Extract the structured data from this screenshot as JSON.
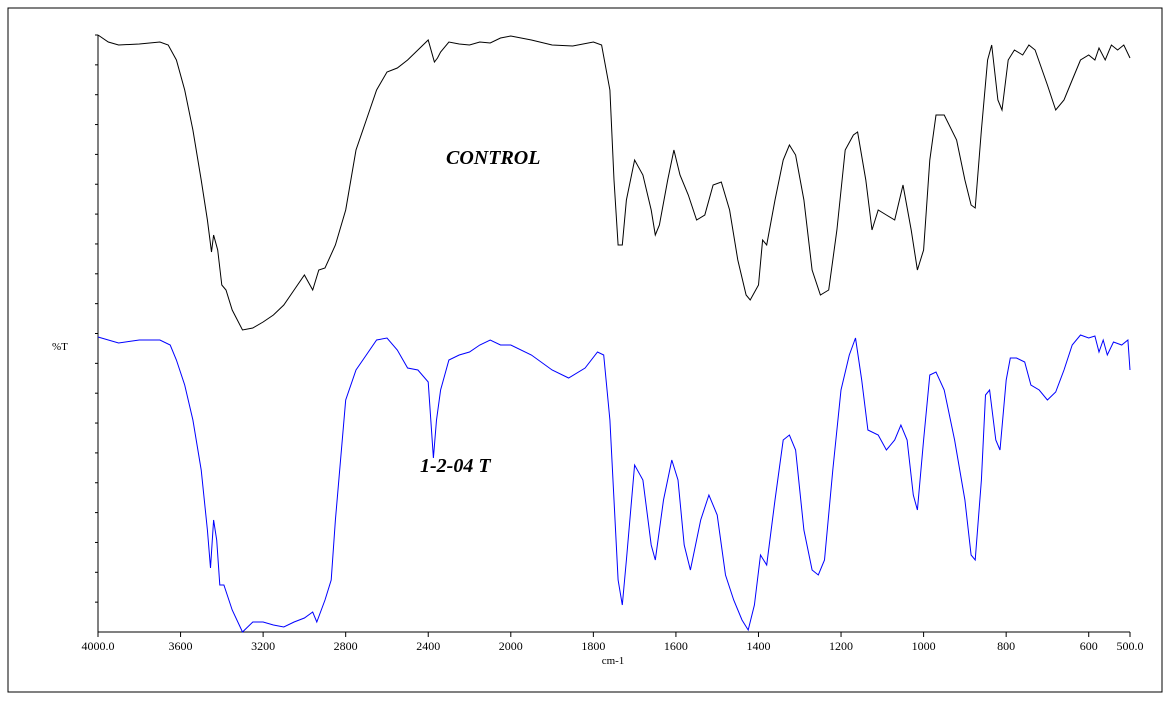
{
  "chart_data": {
    "type": "line",
    "xlabel": "cm-1",
    "ylabel": "%T",
    "annotations": [
      {
        "text": "CONTROL"
      },
      {
        "text": "1-2-04 T"
      }
    ],
    "xlim": [
      4000,
      500
    ],
    "xbreak": {
      "at": 2000,
      "ratio": 2
    },
    "xticks": [
      {
        "value": 4000,
        "label": "4000.0"
      },
      3600,
      3200,
      2800,
      2400,
      2000,
      1800,
      1600,
      1400,
      1200,
      1000,
      800,
      600,
      {
        "value": 500,
        "label": "500.0"
      }
    ],
    "ylim": [
      0,
      60
    ],
    "series": [
      {
        "color": "#000000",
        "x": [
          4000,
          3950,
          3900,
          3800,
          3700,
          3660,
          3620,
          3580,
          3540,
          3500,
          3470,
          3450,
          3440,
          3420,
          3400,
          3380,
          3350,
          3300,
          3250,
          3200,
          3150,
          3100,
          3050,
          3000,
          2960,
          2930,
          2900,
          2850,
          2800,
          2750,
          2700,
          2650,
          2600,
          2550,
          2500,
          2450,
          2400,
          2370,
          2355,
          2340,
          2300,
          2250,
          2200,
          2150,
          2100,
          2050,
          2000,
          1950,
          1900,
          1850,
          1800,
          1780,
          1760,
          1750,
          1740,
          1730,
          1720,
          1700,
          1680,
          1660,
          1650,
          1640,
          1620,
          1605,
          1590,
          1570,
          1550,
          1530,
          1510,
          1490,
          1470,
          1450,
          1430,
          1420,
          1400,
          1390,
          1380,
          1360,
          1340,
          1325,
          1310,
          1290,
          1270,
          1250,
          1230,
          1210,
          1190,
          1170,
          1160,
          1140,
          1125,
          1110,
          1090,
          1070,
          1050,
          1030,
          1015,
          1000,
          985,
          970,
          950,
          920,
          900,
          885,
          875,
          860,
          845,
          835,
          820,
          810,
          795,
          780,
          760,
          745,
          730,
          700,
          680,
          660,
          640,
          620,
          600,
          585,
          575,
          560,
          545,
          530,
          515,
          500
        ],
        "values": [
          59.7,
          59,
          58.7,
          58.8,
          59,
          58.7,
          57.2,
          54.2,
          50.2,
          45.2,
          41.2,
          38,
          39.7,
          38.2,
          34.7,
          34.2,
          32.2,
          30.2,
          30.4,
          31,
          31.7,
          32.7,
          34.2,
          35.7,
          34.2,
          36.2,
          36.4,
          38.7,
          42.2,
          48.2,
          51.2,
          54.2,
          56,
          56.4,
          57.2,
          58.2,
          59.2,
          57,
          57.4,
          58,
          59,
          58.8,
          58.7,
          59,
          58.9,
          59.4,
          59.6,
          59.2,
          58.7,
          58.6,
          59,
          58.7,
          54.2,
          45.2,
          38.7,
          38.7,
          43.2,
          47.2,
          45.7,
          42.2,
          39.7,
          40.7,
          45.2,
          48.2,
          45.7,
          43.7,
          41.2,
          41.7,
          44.7,
          45,
          42.2,
          37.2,
          33.7,
          33.2,
          34.7,
          39.2,
          38.7,
          43.2,
          47.2,
          48.7,
          47.7,
          43.2,
          36.2,
          33.7,
          34.2,
          40.2,
          48.2,
          49.7,
          50,
          45.2,
          40.2,
          42.2,
          41.7,
          41.2,
          44.7,
          40.2,
          36.2,
          38.2,
          47.2,
          51.7,
          51.7,
          49.2,
          45.2,
          42.7,
          42.4,
          50.2,
          57.2,
          58.7,
          53.2,
          52.2,
          57.2,
          58.2,
          57.7,
          58.7,
          58.2,
          54.7,
          52.2,
          53.2,
          55.2,
          57.2,
          57.7,
          57.2,
          58.4,
          57.2,
          58.7,
          58.2,
          58.7,
          57.4
        ]
      },
      {
        "color": "#0000ff",
        "x": [
          4000,
          3900,
          3800,
          3700,
          3650,
          3620,
          3580,
          3540,
          3500,
          3470,
          3455,
          3440,
          3425,
          3410,
          3390,
          3350,
          3300,
          3250,
          3200,
          3150,
          3100,
          3050,
          3000,
          2960,
          2940,
          2900,
          2870,
          2850,
          2800,
          2750,
          2700,
          2650,
          2600,
          2550,
          2500,
          2450,
          2400,
          2375,
          2360,
          2340,
          2300,
          2250,
          2200,
          2150,
          2100,
          2050,
          2000,
          1950,
          1900,
          1860,
          1820,
          1790,
          1775,
          1760,
          1750,
          1740,
          1730,
          1720,
          1700,
          1680,
          1660,
          1650,
          1630,
          1610,
          1595,
          1580,
          1565,
          1540,
          1520,
          1500,
          1480,
          1460,
          1440,
          1425,
          1410,
          1395,
          1380,
          1360,
          1340,
          1325,
          1310,
          1290,
          1270,
          1255,
          1240,
          1220,
          1200,
          1180,
          1165,
          1150,
          1135,
          1110,
          1090,
          1070,
          1055,
          1040,
          1025,
          1015,
          1000,
          985,
          970,
          950,
          925,
          900,
          885,
          875,
          860,
          850,
          840,
          825,
          815,
          800,
          790,
          775,
          755,
          740,
          720,
          700,
          680,
          660,
          640,
          620,
          600,
          585,
          575,
          565,
          555,
          540,
          520,
          505,
          500
        ],
        "values": [
          29.5,
          28.9,
          29.2,
          29.2,
          28.7,
          27.2,
          24.7,
          21.2,
          16.2,
          10.2,
          6.4,
          11.2,
          9.2,
          4.7,
          4.7,
          2.2,
          0,
          1,
          1,
          0.7,
          0.5,
          1,
          1.4,
          2,
          1,
          3.2,
          5.2,
          11.2,
          23.2,
          26.2,
          27.7,
          29.2,
          29.4,
          28.2,
          26.4,
          26.2,
          25,
          17.4,
          21.2,
          24.2,
          27.2,
          27.7,
          28,
          28.7,
          29.2,
          28.7,
          28.7,
          27.7,
          26.2,
          25.4,
          26.4,
          28,
          27.7,
          21.2,
          13.2,
          5.2,
          2.7,
          7.2,
          16.7,
          15.2,
          8.7,
          7.2,
          13.2,
          17.2,
          15.2,
          8.7,
          6.2,
          11.2,
          13.7,
          11.7,
          5.7,
          3.2,
          1.2,
          0.2,
          2.7,
          7.7,
          6.7,
          13.2,
          19.2,
          19.7,
          18.2,
          10.2,
          6.2,
          5.7,
          7.2,
          16.2,
          24.2,
          27.7,
          29.4,
          25.2,
          20.2,
          19.7,
          18.2,
          19.2,
          20.7,
          19.2,
          13.7,
          12.2,
          19.2,
          25.7,
          26,
          24.2,
          19.2,
          13.2,
          7.7,
          7.2,
          15.2,
          23.7,
          24.2,
          19.2,
          18.2,
          25.2,
          27.4,
          27.4,
          27,
          24.7,
          24.2,
          23.2,
          24,
          26.2,
          28.7,
          29.7,
          29.4,
          29.6,
          28,
          29.2,
          27.7,
          29,
          28.7,
          29.2,
          26.2
        ]
      }
    ]
  }
}
